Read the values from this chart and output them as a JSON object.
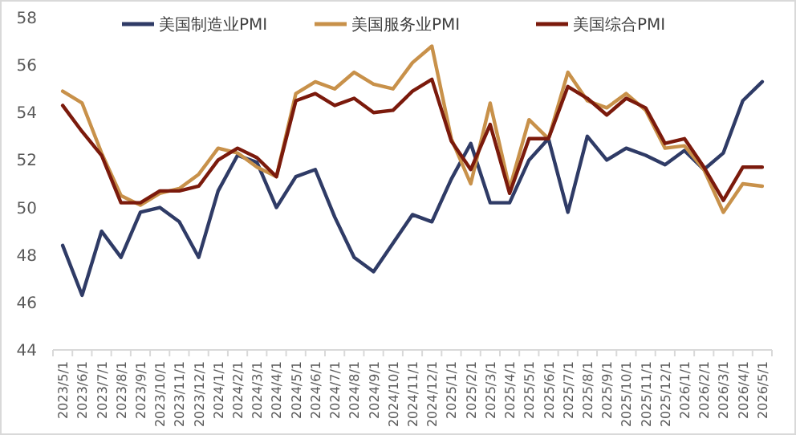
{
  "chart_data": {
    "type": "line",
    "categories": [
      "2023/5/1",
      "2023/6/1",
      "2023/7/1",
      "2023/8/1",
      "2023/9/1",
      "2023/10/1",
      "2023/11/1",
      "2023/12/1",
      "2024/1/1",
      "2024/2/1",
      "2024/3/1",
      "2024/4/1",
      "2024/5/1",
      "2024/6/1",
      "2024/7/1",
      "2024/8/1",
      "2024/9/1",
      "2024/10/1",
      "2024/11/1",
      "2024/12/1",
      "2025/1/1",
      "2025/2/1",
      "2025/3/1",
      "2025/4/1",
      "2025/5/1",
      "2025/6/1",
      "2025/7/1",
      "2025/8/1",
      "2025/9/1",
      "2025/10/1",
      "2025/11/1",
      "2025/12/1",
      "2026/1/1",
      "2026/2/1",
      "2026/3/1",
      "2026/4/1",
      "2026/5/1"
    ],
    "series": [
      {
        "name": "美国制造业PMI",
        "color": "#2f3b66",
        "values": [
          48.4,
          46.3,
          49.0,
          47.9,
          49.8,
          50.0,
          49.4,
          47.9,
          50.7,
          52.2,
          51.9,
          50.0,
          51.3,
          51.6,
          49.6,
          47.9,
          47.3,
          48.5,
          49.7,
          49.4,
          51.2,
          52.7,
          50.2,
          50.2,
          52.0,
          52.9,
          49.8,
          53.0,
          52.0,
          52.5,
          52.2,
          51.8,
          52.4,
          51.6,
          52.3,
          54.5,
          55.3
        ]
      },
      {
        "name": "美国服务业PMI",
        "color": "#c8914a",
        "values": [
          54.9,
          54.4,
          52.3,
          50.5,
          50.1,
          50.6,
          50.8,
          51.4,
          52.5,
          52.3,
          51.7,
          51.3,
          54.8,
          55.3,
          55.0,
          55.7,
          55.2,
          55.0,
          56.1,
          56.8,
          52.9,
          51.0,
          54.4,
          50.8,
          53.7,
          52.9,
          55.7,
          54.5,
          54.2,
          54.8,
          54.1,
          52.5,
          52.6,
          51.6,
          49.8,
          51.0,
          50.9
        ]
      },
      {
        "name": "美国综合PMI",
        "color": "#7b1a0c",
        "values": [
          54.3,
          53.2,
          52.2,
          50.2,
          50.2,
          50.7,
          50.7,
          50.9,
          52.0,
          52.5,
          52.1,
          51.3,
          54.5,
          54.8,
          54.3,
          54.6,
          54.0,
          54.1,
          54.9,
          55.4,
          52.8,
          51.6,
          53.5,
          50.6,
          52.9,
          52.9,
          55.1,
          54.6,
          53.9,
          54.6,
          54.2,
          52.7,
          52.9,
          51.7,
          50.3,
          51.7,
          51.7
        ]
      }
    ],
    "ylim": [
      44,
      58
    ],
    "yticks": [
      44,
      46,
      48,
      50,
      52,
      54,
      56,
      58
    ],
    "legend": "top",
    "grid": false,
    "marker": "none",
    "line_style": "solid"
  }
}
